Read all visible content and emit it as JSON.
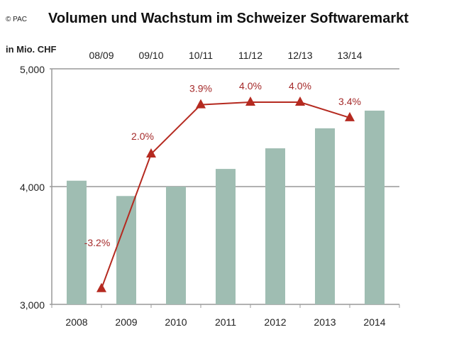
{
  "chart_data": {
    "type": "bar",
    "title": "Volumen und Wachstum im Schweizer Softwaremarkt",
    "source": "© PAC",
    "ylabel": "in Mio. CHF",
    "ylim": [
      3000,
      5000
    ],
    "yticks": [
      "3,000",
      "4,000",
      "5,000"
    ],
    "ytick_values": [
      3000,
      4000,
      5000
    ],
    "grid": true,
    "categories": [
      "2008",
      "2009",
      "2010",
      "2011",
      "2012",
      "2013",
      "2014"
    ],
    "values": [
      4050,
      3920,
      4000,
      4150,
      4325,
      4495,
      4645
    ],
    "bar_color": "#9fbdb2",
    "growth": {
      "type": "line",
      "periods": [
        "08/09",
        "09/10",
        "10/11",
        "11/12",
        "12/13",
        "13/14"
      ],
      "values": [
        -3.2,
        2.0,
        3.9,
        4.0,
        4.0,
        3.4
      ],
      "labels": [
        "-3.2%",
        "2.0%",
        "3.9%",
        "4.0%",
        "4.0%",
        "3.4%"
      ],
      "marker": "triangle",
      "color": "#b52a20",
      "label_color": "#a52a2a"
    }
  }
}
